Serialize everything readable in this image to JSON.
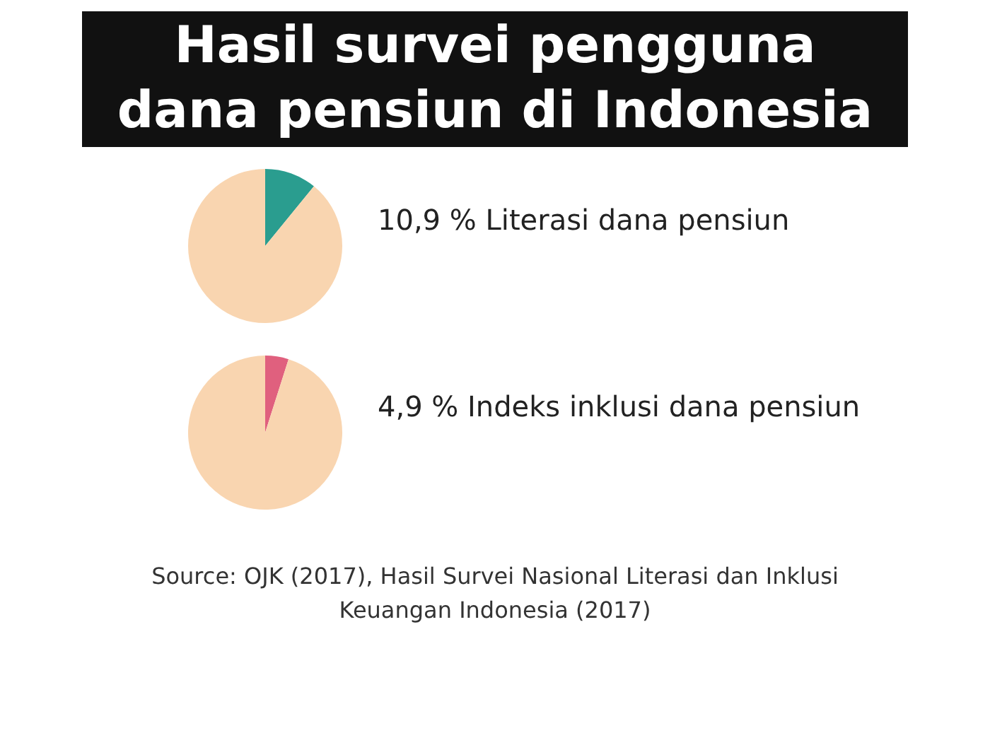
{
  "chart_data": [
    {
      "type": "pie",
      "title": "Hasil survei pengguna dana pensiun di Indonesia",
      "subtitle": "Literasi dana pensiun",
      "categories": [
        null,
        null
      ],
      "values": [
        10.9,
        89.1
      ],
      "colors": [
        "#2a9d8f",
        "#f9d5b0"
      ],
      "value_labels": [
        "10,9 %",
        null
      ],
      "legend": false
    },
    {
      "type": "pie",
      "subtitle": "Indeks inklusi dana pensiun",
      "categories": [
        null,
        null
      ],
      "values": [
        4.9,
        95.1
      ],
      "colors": [
        "#e0607e",
        "#f9d5b0"
      ],
      "value_labels": [
        "4,9 %",
        null
      ],
      "legend": false,
      "annotations": [
        "Source: OJK (2017),  Hasil Survei Nasional Literasi dan Inklusi Keuangan Indonesia (2017)"
      ]
    }
  ]
}
